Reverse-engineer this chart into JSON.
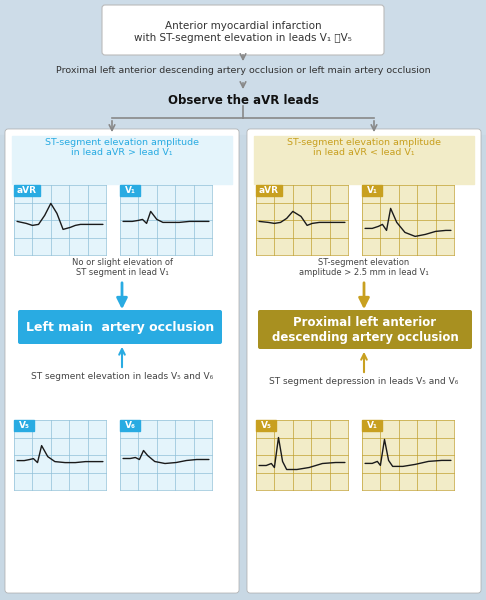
{
  "title_line1": "Anterior myocardial infarction",
  "title_line2": "with ST-segment elevation in leads V₁ ～V₅",
  "step2_text": "Proximal left anterior descending artery occlusion or left main artery occlusion",
  "step3_text": "Observe the aVR leads",
  "left_top_text": "ST-segment elevation amplitude\nin lead aVR > lead V₁",
  "right_top_text": "ST-segment elevation amplitude\nin lead aVR < lead V₁",
  "left_note1": "No or slight elevation of\nST segment in lead V₁",
  "right_note1": "ST-segment elevation\namplitude > 2.5 mm in lead V₁",
  "left_box_text": "Left main  artery occlusion",
  "right_box_text": "Proximal left anterior\ndescending artery occlusion",
  "left_bottom_text": "ST segment elevation in leads V₅ and V₆",
  "right_bottom_text": "ST segment depression in leads V₅ and V₆",
  "blue_color": "#29abe2",
  "gold_color": "#c8a020",
  "blue_bg": "#e4f4fb",
  "gold_bg": "#f2ecc8",
  "gold_box_bg": "#a89020",
  "bg_color": "#c8dce8",
  "bg_top_color": "#ccdce8",
  "left_panel_bg": "#dceef8",
  "right_panel_bg": "#f0e8d8"
}
